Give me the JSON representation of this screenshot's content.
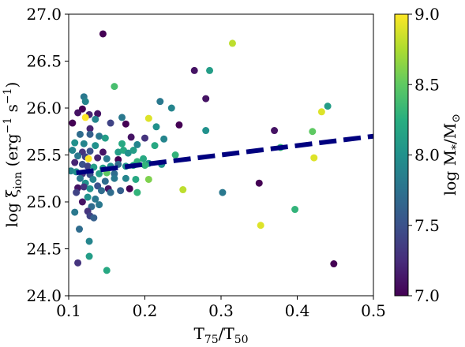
{
  "chart_data": {
    "type": "scatter",
    "title": "",
    "xlabel": {
      "base": "T",
      "sub1": "75",
      "mid": "/T",
      "sub2": "50"
    },
    "ylabel": {
      "pre": "log ξ",
      "sub": "ion",
      "paren_open": " (erg",
      "sup1": "−1",
      "mid": " s",
      "sup2": "−1",
      "paren_close": ")"
    },
    "colorbar_label": {
      "pre": "log M",
      "sub1": "*",
      "mid": "/M",
      "sub2": "⊙"
    },
    "xlim": [
      0.1,
      0.5
    ],
    "ylim": [
      24.0,
      27.0
    ],
    "clim": [
      7.0,
      9.0
    ],
    "xticks": [
      "0.1",
      "0.2",
      "0.3",
      "0.4",
      "0.5"
    ],
    "xtick_values": [
      0.1,
      0.2,
      0.3,
      0.4,
      0.5
    ],
    "yticks": [
      "24.0",
      "24.5",
      "25.0",
      "25.5",
      "26.0",
      "26.5",
      "27.0"
    ],
    "ytick_values": [
      24.0,
      24.5,
      25.0,
      25.5,
      26.0,
      26.5,
      27.0
    ],
    "cticks": [
      "7.0",
      "7.5",
      "8.0",
      "8.5",
      "9.0"
    ],
    "ctick_values": [
      7.0,
      7.5,
      8.0,
      8.5,
      9.0
    ],
    "colormap": "viridis",
    "fit_line": {
      "x": [
        0.11,
        0.5
      ],
      "y": [
        25.31,
        25.7
      ],
      "color": "#00007f",
      "style": "dashed"
    },
    "points": [
      [
        0.145,
        26.79,
        7.0
      ],
      [
        0.315,
        26.69,
        8.8
      ],
      [
        0.265,
        26.4,
        7.1
      ],
      [
        0.285,
        26.4,
        8.1
      ],
      [
        0.16,
        26.23,
        8.4
      ],
      [
        0.28,
        26.1,
        7.1
      ],
      [
        0.12,
        26.12,
        7.8
      ],
      [
        0.122,
        26.07,
        7.9
      ],
      [
        0.22,
        26.07,
        7.8
      ],
      [
        0.235,
        26.0,
        7.9
      ],
      [
        0.44,
        26.02,
        8.1
      ],
      [
        0.432,
        25.96,
        8.9
      ],
      [
        0.118,
        25.99,
        7.0
      ],
      [
        0.112,
        25.95,
        7.1
      ],
      [
        0.127,
        25.93,
        7.2
      ],
      [
        0.138,
        25.94,
        7.1
      ],
      [
        0.135,
        25.88,
        7.9
      ],
      [
        0.122,
        25.9,
        9.0
      ],
      [
        0.17,
        25.9,
        7.8
      ],
      [
        0.205,
        25.89,
        8.9
      ],
      [
        0.105,
        25.84,
        7.0
      ],
      [
        0.128,
        25.78,
        7.2
      ],
      [
        0.155,
        25.84,
        7.4
      ],
      [
        0.175,
        25.83,
        7.0
      ],
      [
        0.215,
        25.8,
        8.0
      ],
      [
        0.245,
        25.82,
        7.0
      ],
      [
        0.28,
        25.76,
        8.0
      ],
      [
        0.37,
        25.76,
        7.1
      ],
      [
        0.42,
        25.75,
        8.5
      ],
      [
        0.115,
        25.72,
        7.7
      ],
      [
        0.128,
        25.72,
        7.6
      ],
      [
        0.14,
        25.7,
        7.8
      ],
      [
        0.148,
        25.68,
        8.1
      ],
      [
        0.182,
        25.69,
        7.1
      ],
      [
        0.2,
        25.68,
        7.3
      ],
      [
        0.225,
        25.67,
        7.9
      ],
      [
        0.108,
        25.63,
        8.0
      ],
      [
        0.12,
        25.62,
        7.9
      ],
      [
        0.135,
        25.6,
        8.0
      ],
      [
        0.17,
        25.62,
        8.2
      ],
      [
        0.19,
        25.61,
        7.9
      ],
      [
        0.213,
        25.6,
        8.2
      ],
      [
        0.378,
        25.58,
        8.3
      ],
      [
        0.105,
        25.55,
        7.9
      ],
      [
        0.118,
        25.53,
        7.3
      ],
      [
        0.128,
        25.54,
        7.5
      ],
      [
        0.145,
        25.53,
        7.1
      ],
      [
        0.165,
        25.53,
        8.1
      ],
      [
        0.172,
        25.55,
        8.2
      ],
      [
        0.178,
        25.52,
        8.0
      ],
      [
        0.185,
        25.55,
        8.1
      ],
      [
        0.24,
        25.5,
        8.3
      ],
      [
        0.112,
        25.49,
        7.8
      ],
      [
        0.122,
        25.48,
        7.4
      ],
      [
        0.126,
        25.46,
        9.0
      ],
      [
        0.138,
        25.47,
        7.2
      ],
      [
        0.15,
        25.46,
        7.8
      ],
      [
        0.165,
        25.45,
        7.0
      ],
      [
        0.19,
        25.43,
        8.3
      ],
      [
        0.198,
        25.46,
        8.2
      ],
      [
        0.205,
        25.41,
        8.0
      ],
      [
        0.422,
        25.47,
        8.9
      ],
      [
        0.108,
        25.42,
        7.2
      ],
      [
        0.118,
        25.4,
        7.5
      ],
      [
        0.125,
        25.38,
        7.4
      ],
      [
        0.133,
        25.37,
        8.1
      ],
      [
        0.145,
        25.36,
        8.1
      ],
      [
        0.155,
        25.38,
        8.0
      ],
      [
        0.165,
        25.4,
        7.7
      ],
      [
        0.175,
        25.38,
        8.0
      ],
      [
        0.185,
        25.39,
        8.2
      ],
      [
        0.2,
        25.39,
        8.3
      ],
      [
        0.222,
        25.4,
        8.0
      ],
      [
        0.103,
        25.33,
        7.9
      ],
      [
        0.11,
        25.32,
        8.0
      ],
      [
        0.118,
        25.3,
        7.3
      ],
      [
        0.128,
        25.29,
        7.5
      ],
      [
        0.14,
        25.3,
        8.1
      ],
      [
        0.15,
        25.31,
        8.5
      ],
      [
        0.16,
        25.3,
        7.7
      ],
      [
        0.115,
        25.25,
        7.8
      ],
      [
        0.122,
        25.2,
        8.0
      ],
      [
        0.132,
        25.24,
        7.9
      ],
      [
        0.148,
        25.22,
        7.7
      ],
      [
        0.16,
        25.25,
        7.8
      ],
      [
        0.175,
        25.25,
        7.9
      ],
      [
        0.188,
        25.24,
        8.2
      ],
      [
        0.205,
        25.24,
        8.6
      ],
      [
        0.35,
        25.2,
        7.0
      ],
      [
        0.112,
        25.15,
        7.1
      ],
      [
        0.12,
        25.16,
        7.3
      ],
      [
        0.128,
        25.14,
        8.0
      ],
      [
        0.138,
        25.17,
        7.5
      ],
      [
        0.143,
        25.12,
        7.7
      ],
      [
        0.152,
        25.14,
        7.1
      ],
      [
        0.168,
        25.12,
        7.6
      ],
      [
        0.18,
        25.14,
        7.0
      ],
      [
        0.19,
        25.1,
        8.3
      ],
      [
        0.25,
        25.13,
        8.8
      ],
      [
        0.302,
        25.1,
        7.8
      ],
      [
        0.11,
        25.1,
        7.4
      ],
      [
        0.125,
        25.05,
        8.0
      ],
      [
        0.135,
        25.03,
        7.8
      ],
      [
        0.155,
        25.1,
        7.7
      ],
      [
        0.118,
        25.0,
        7.1
      ],
      [
        0.13,
        24.95,
        7.7
      ],
      [
        0.14,
        24.97,
        7.8
      ],
      [
        0.125,
        24.9,
        7.3
      ],
      [
        0.108,
        24.89,
        7.8
      ],
      [
        0.128,
        24.85,
        7.4
      ],
      [
        0.133,
        24.83,
        7.6
      ],
      [
        0.397,
        24.92,
        8.3
      ],
      [
        0.352,
        24.75,
        8.9
      ],
      [
        0.114,
        24.71,
        7.7
      ],
      [
        0.127,
        24.58,
        7.9
      ],
      [
        0.127,
        24.42,
        8.1
      ],
      [
        0.112,
        24.35,
        7.3
      ],
      [
        0.15,
        24.27,
        8.2
      ],
      [
        0.448,
        24.34,
        7.0
      ]
    ]
  }
}
